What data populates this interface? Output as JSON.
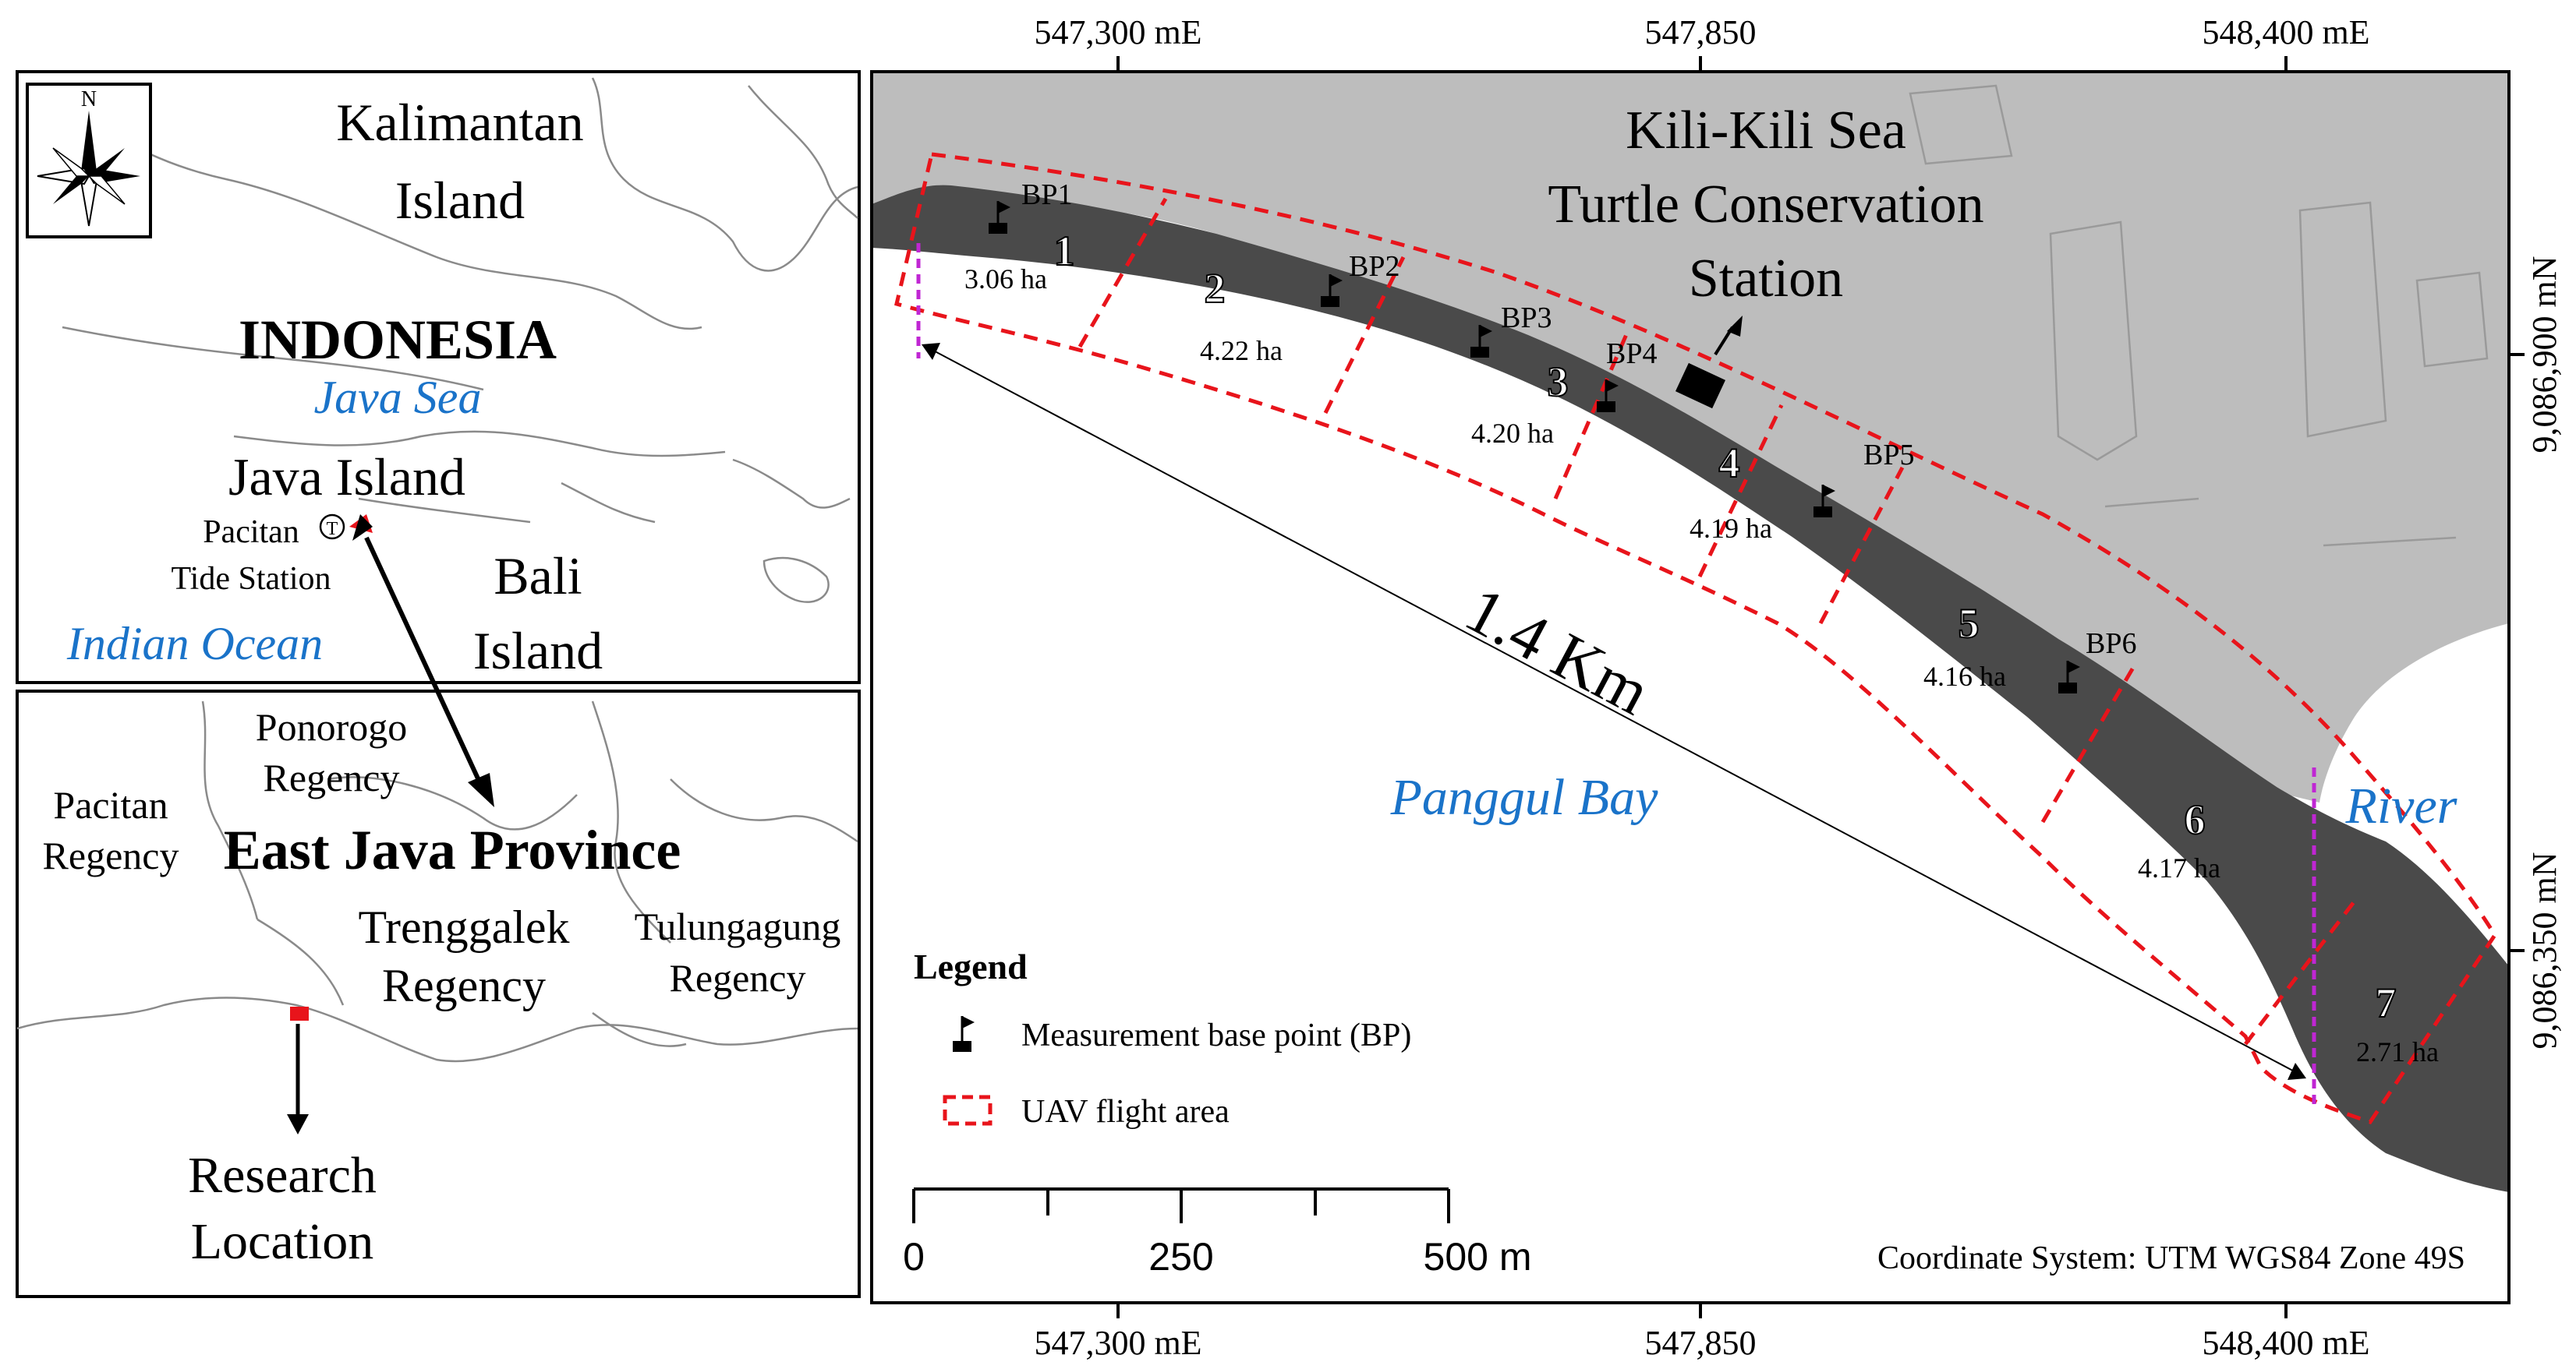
{
  "grid": {
    "top_ticks": [
      "547,300 mE",
      "547,850",
      "548,400 mE"
    ],
    "bottom_ticks": [
      "547,300 mE",
      "547,850",
      "548,400 mE"
    ],
    "right_ticks": [
      "9,086,900 mN",
      "9,086,350 mN"
    ]
  },
  "inset_indonesia": {
    "north_label": "N",
    "kalimantan": [
      "Kalimantan",
      "Island"
    ],
    "country": "INDONESIA",
    "java_sea": "Java Sea",
    "java_island": "Java Island",
    "tide_station": [
      "Pacitan",
      "Tide Station"
    ],
    "tide_symbol": "T",
    "bali": [
      "Bali",
      "Island"
    ],
    "indian_ocean": "Indian Ocean"
  },
  "inset_province": {
    "ponorogo": [
      "Ponorogo",
      "Regency"
    ],
    "pacitan": [
      "Pacitan",
      "Regency"
    ],
    "province": "East Java Province",
    "trenggalek": [
      "Trenggalek",
      "Regency"
    ],
    "tulungagung": [
      "Tulungagung",
      "Regency"
    ],
    "research": [
      "Research",
      "Location"
    ]
  },
  "main_map": {
    "station": [
      "Kili-Kili Sea",
      "Turtle Conservation",
      "Station"
    ],
    "bay": "Panggul Bay",
    "river": "River",
    "distance": "1.4 Km",
    "segments": [
      {
        "num": "1",
        "area": "3.06 ha"
      },
      {
        "num": "2",
        "area": "4.22 ha"
      },
      {
        "num": "3",
        "area": "4.20 ha"
      },
      {
        "num": "4",
        "area": "4.19 ha"
      },
      {
        "num": "5",
        "area": "4.16 ha"
      },
      {
        "num": "6",
        "area": "4.17 ha"
      },
      {
        "num": "7",
        "area": "2.71 ha"
      }
    ],
    "base_points": [
      "BP1",
      "BP2",
      "BP3",
      "BP4",
      "BP5",
      "BP6"
    ]
  },
  "legend": {
    "title": "Legend",
    "bp": "Measurement base point (BP)",
    "uav": "UAV flight area"
  },
  "scale_bar": {
    "labels": [
      "0",
      "250",
      "500 m"
    ]
  },
  "coordinate_system": "Coordinate System: UTM WGS84 Zone 49S",
  "colors": {
    "land": "#bdbdbd",
    "beach": "#4a4a4a",
    "flight_area": "#e8141b",
    "boundary": "#c026d3",
    "water_label": "#1a73c9",
    "marker": "#e8141b"
  }
}
